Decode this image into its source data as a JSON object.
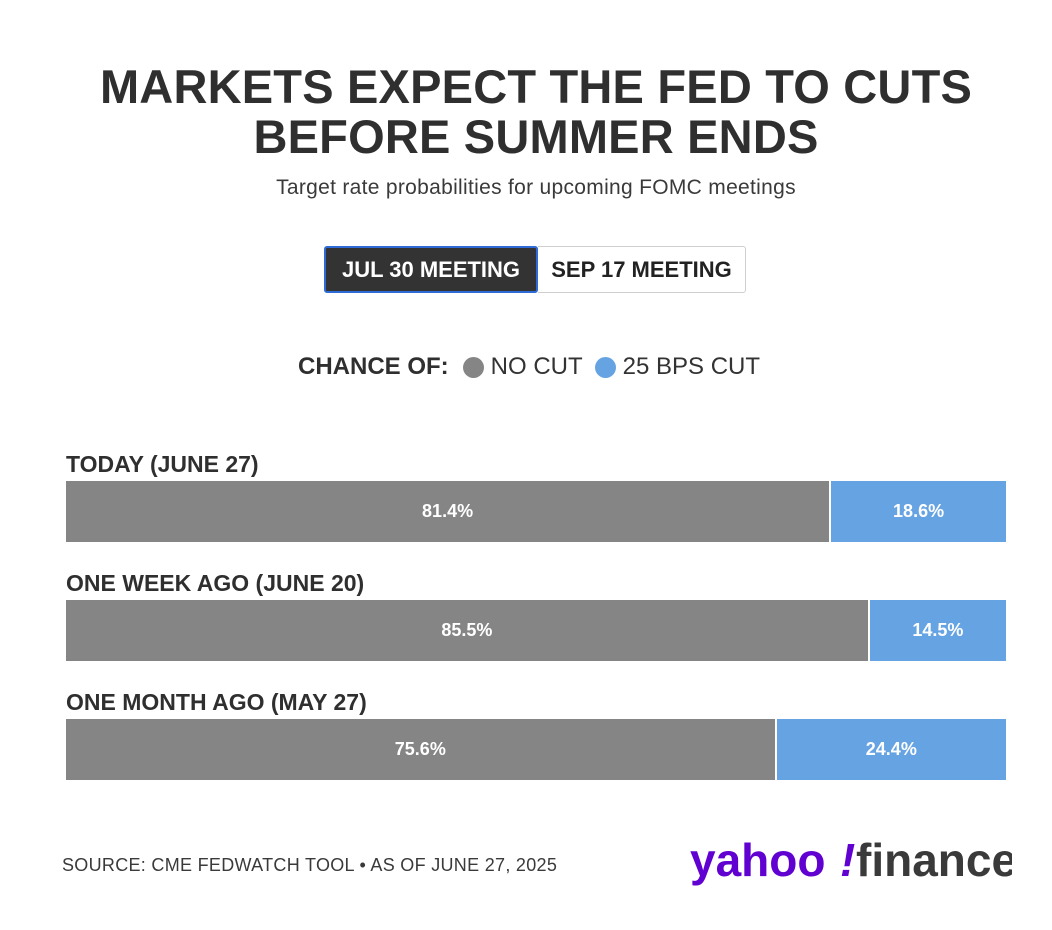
{
  "title_line1": "MARKETS EXPECT THE FED TO CUTS",
  "title_line2": "BEFORE SUMMER ENDS",
  "subtitle": "Target rate probabilities for upcoming FOMC meetings",
  "tabs": [
    {
      "label": "JUL 30 MEETING",
      "active": true
    },
    {
      "label": "SEP 17 MEETING",
      "active": false
    }
  ],
  "legend": {
    "lead": "CHANCE OF:",
    "items": [
      {
        "label": "NO CUT",
        "color": "#858585"
      },
      {
        "label": "25 BPS CUT",
        "color": "#66a3e3"
      }
    ]
  },
  "chart_data": {
    "type": "bar",
    "orientation": "horizontal-stacked-100",
    "categories": [
      "TODAY (JUNE 27)",
      "ONE WEEK AGO (JUNE 20)",
      "ONE MONTH AGO (MAY 27)"
    ],
    "series": [
      {
        "name": "NO CUT",
        "color": "#858585",
        "values": [
          81.4,
          85.5,
          75.6
        ],
        "labels": [
          "81.4%",
          "85.5%",
          "75.6%"
        ]
      },
      {
        "name": "25 BPS CUT",
        "color": "#66a3e3",
        "values": [
          18.6,
          14.5,
          24.4
        ],
        "labels": [
          "18.6%",
          "14.5%",
          "24.4%"
        ]
      }
    ],
    "xlim": [
      0,
      100
    ]
  },
  "source": "SOURCE: CME FEDWATCH TOOL • AS OF JUNE 27, 2025",
  "logo": {
    "left": "yahoo",
    "mark": "!",
    "right": "finance",
    "color_left": "#6001d2",
    "color_right": "#3a3a3a"
  }
}
